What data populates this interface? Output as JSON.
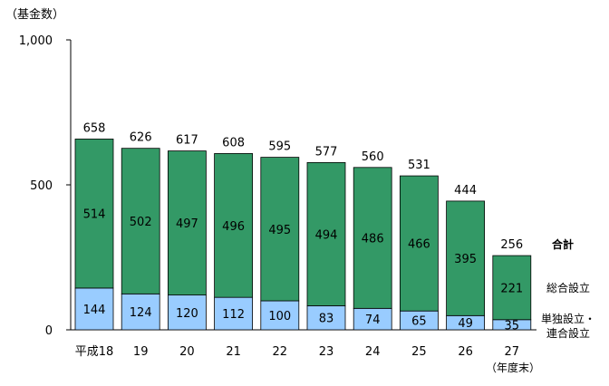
{
  "chart_data": {
    "type": "bar",
    "stacked": true,
    "ylabel": "（基金数）",
    "ylim": [
      0,
      1000
    ],
    "yticks": [
      "0",
      "500",
      "1,000"
    ],
    "ytick_values": [
      0,
      500,
      1000
    ],
    "categories": [
      "平成18",
      "19",
      "20",
      "21",
      "22",
      "23",
      "24",
      "25",
      "26",
      "27"
    ],
    "x_suffix": "（年度末）",
    "series": [
      {
        "name": "単独設立・連合設立",
        "values": [
          144,
          124,
          120,
          112,
          100,
          83,
          74,
          65,
          49,
          35
        ],
        "color": "#99ccff"
      },
      {
        "name": "総合設立",
        "values": [
          514,
          502,
          497,
          496,
          495,
          494,
          486,
          466,
          395,
          221
        ],
        "color": "#339966"
      }
    ],
    "totals": [
      658,
      626,
      617,
      608,
      595,
      577,
      560,
      531,
      444,
      256
    ],
    "total_label": "合計",
    "grid": false
  }
}
